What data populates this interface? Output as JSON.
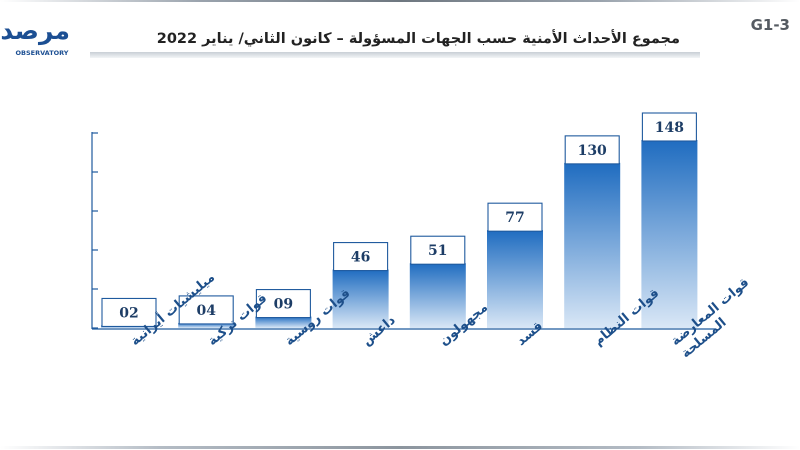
{
  "header": {
    "logo_text": "مرصد",
    "logo_subtext": "OBSERVATORY",
    "title": "مجموع الأحداث الأمنية حسب الجهات المسؤولة – كانون الثاني/ يناير 2022",
    "chart_code": "G1-3"
  },
  "colors": {
    "bar_top": "#1f6cc0",
    "bar_bottom": "#d9e7f6",
    "label_border": "#1f5a9e",
    "value_text": "#1d3d66",
    "category_text": "#1d4f8a",
    "axis": "#1f5a9e"
  },
  "chart_data": {
    "type": "bar",
    "title": "مجموع الأحداث الأمنية حسب الجهات المسؤولة – كانون الثاني/ يناير 2022",
    "xlabel": "",
    "ylabel": "",
    "categories": [
      "ميليشيات أيرانية",
      "قوات تركية",
      "قوات روسية",
      "داعش",
      "مجهولون",
      "قسد",
      "قوات النظام",
      "قوات المعارضة المسلحة"
    ],
    "values": [
      2,
      4,
      9,
      46,
      51,
      77,
      130,
      148
    ],
    "value_labels": [
      "02",
      "04",
      "09",
      "46",
      "51",
      "77",
      "130",
      "148"
    ],
    "ylim": [
      0,
      150
    ],
    "grid": false,
    "legend": "none"
  }
}
